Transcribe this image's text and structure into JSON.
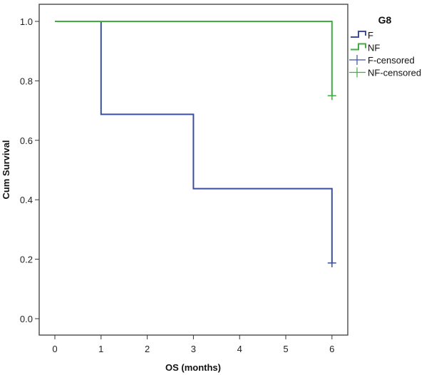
{
  "chart_data": {
    "type": "line",
    "subtype": "kaplan-meier step",
    "xlabel": "OS (months)",
    "ylabel": "Cum Survival",
    "xlim": [
      -0.33,
      6.33
    ],
    "ylim": [
      -0.06,
      1.06
    ],
    "xticks": [
      "0",
      "1",
      "2",
      "3",
      "4",
      "5",
      "6"
    ],
    "yticks": [
      "0.0",
      "0.2",
      "0.4",
      "0.6",
      "0.8",
      "1.0"
    ],
    "legend_title": "G8",
    "legend_position": "right",
    "series": [
      {
        "name": "F",
        "color": "#3a4fa0",
        "steps": [
          [
            0,
            1.0
          ],
          [
            1,
            0.6875
          ],
          [
            3,
            0.4375
          ],
          [
            6,
            0.1875
          ]
        ],
        "censored": [
          [
            6,
            0.1875
          ]
        ],
        "censored_label": "F-censored"
      },
      {
        "name": "NF",
        "color": "#3fae3f",
        "steps": [
          [
            0,
            1.0
          ],
          [
            6,
            0.75
          ]
        ],
        "censored": [
          [
            6,
            0.75
          ]
        ],
        "censored_label": "NF-censored"
      }
    ]
  }
}
